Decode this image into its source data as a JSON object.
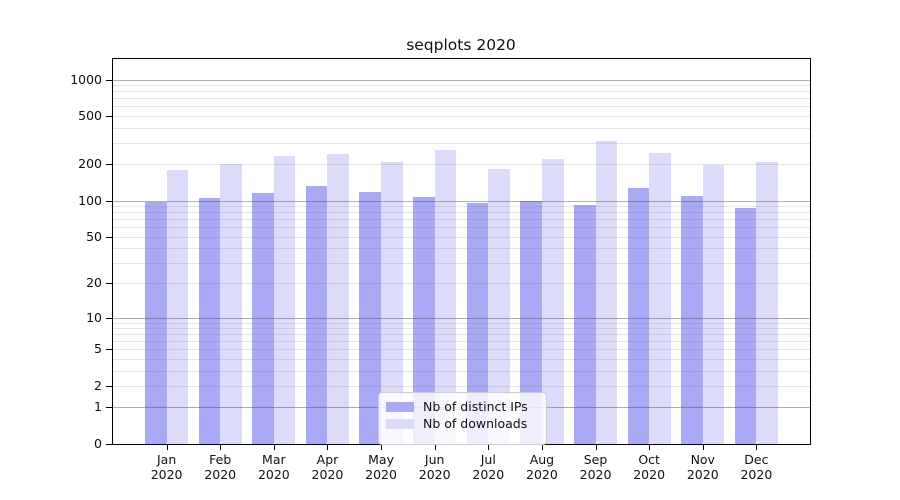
{
  "chart_data": {
    "type": "bar",
    "title": "seqplots 2020",
    "xlabel": "",
    "ylabel": "",
    "year": "2020",
    "categories": [
      "Jan",
      "Feb",
      "Mar",
      "Apr",
      "May",
      "Jun",
      "Jul",
      "Aug",
      "Sep",
      "Oct",
      "Nov",
      "Dec"
    ],
    "series": [
      {
        "name": "Nb of distinct IPs",
        "color": "#a9a9f6",
        "values": [
          97,
          105,
          116,
          132,
          118,
          107,
          95,
          100,
          91,
          126,
          110,
          86
        ]
      },
      {
        "name": "Nb of downloads",
        "color": "#dcdcfa",
        "values": [
          178,
          200,
          234,
          242,
          209,
          261,
          184,
          223,
          310,
          248,
          199,
          209
        ]
      }
    ],
    "y_scale": "log1p",
    "ylim": [
      0,
      1470
    ],
    "y_ticks": [
      1000,
      500,
      200,
      100,
      50,
      20,
      10,
      5,
      2,
      1,
      0
    ],
    "y_major_gridlines": [
      1,
      10,
      100,
      1000
    ],
    "y_minor_gridlines": [
      2,
      3,
      4,
      5,
      6,
      7,
      8,
      9,
      20,
      30,
      40,
      50,
      60,
      70,
      80,
      90,
      200,
      300,
      400,
      500,
      600,
      700,
      800,
      900
    ],
    "grid": true,
    "legend_position": "lower center",
    "colors": {
      "axis": "#000000",
      "major_grid": "#aeaeae",
      "minor_grid": "#e4e4e4",
      "text": "#111111",
      "legend_border": "#cccccc"
    }
  }
}
